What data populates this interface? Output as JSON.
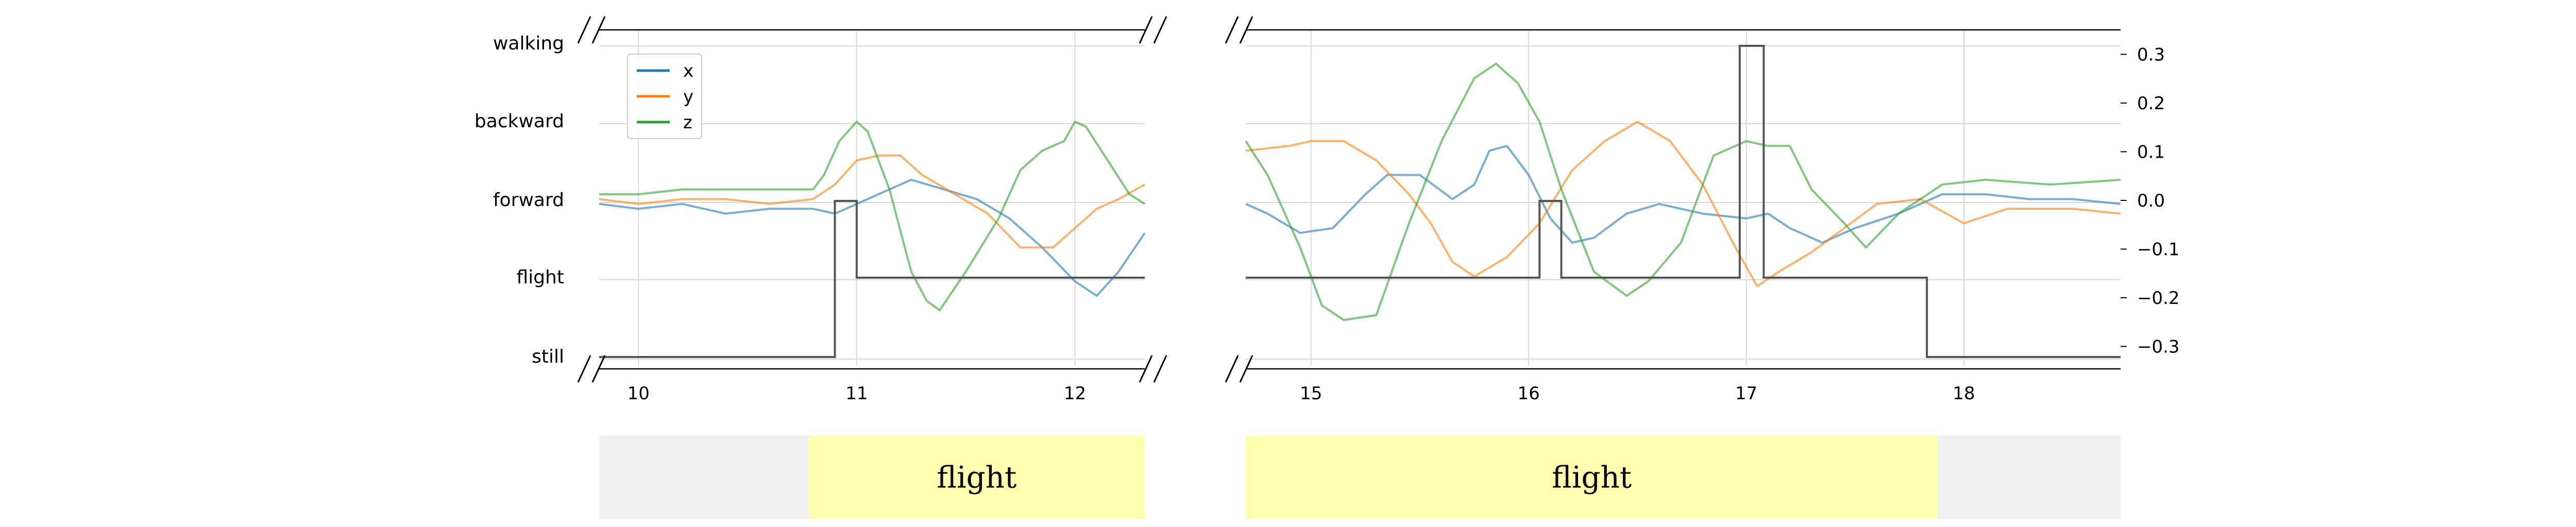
{
  "chart_data": {
    "type": "line",
    "legend": {
      "placement": "top-left",
      "entries": [
        {
          "label": "x",
          "color": "#1f77b4"
        },
        {
          "label": "y",
          "color": "#ff7f0e"
        },
        {
          "label": "z",
          "color": "#2ca02c"
        }
      ]
    },
    "left_axis": {
      "categories": [
        "walking",
        "backward",
        "forward",
        "flight",
        "still"
      ]
    },
    "right_axis": {
      "ticks": [
        "0.3",
        "0.2",
        "0.1",
        "0.0",
        "−0.1",
        "−0.2",
        "−0.3"
      ],
      "tick_values": [
        0.3,
        0.2,
        0.1,
        0.0,
        -0.1,
        -0.2,
        -0.3
      ],
      "ylim": [
        -0.35,
        0.35
      ]
    },
    "grid": true,
    "broken_axis": true,
    "panels": [
      {
        "xlim": [
          9.82,
          12.32
        ],
        "xticks": [
          10,
          11,
          12
        ],
        "xtick_labels": [
          "10",
          "11",
          "12"
        ],
        "state_series": [
          [
            9.82,
            "still"
          ],
          [
            10.9,
            "still"
          ],
          [
            10.9,
            "forward"
          ],
          [
            11.0,
            "forward"
          ],
          [
            11.0,
            "flight"
          ],
          [
            12.32,
            "flight"
          ]
        ],
        "series": [
          {
            "name": "x",
            "x": [
              9.82,
              10.0,
              10.2,
              10.4,
              10.6,
              10.8,
              10.9,
              11.0,
              11.1,
              11.25,
              11.4,
              11.55,
              11.7,
              11.85,
              12.0,
              12.1,
              12.2,
              12.32
            ],
            "values": [
              -0.01,
              -0.02,
              -0.01,
              -0.03,
              -0.02,
              -0.02,
              -0.03,
              -0.01,
              0.01,
              0.04,
              0.02,
              0.0,
              -0.04,
              -0.1,
              -0.17,
              -0.2,
              -0.15,
              -0.07
            ]
          },
          {
            "name": "y",
            "x": [
              9.82,
              10.0,
              10.2,
              10.4,
              10.6,
              10.8,
              10.9,
              11.0,
              11.1,
              11.2,
              11.3,
              11.45,
              11.6,
              11.75,
              11.9,
              12.0,
              12.1,
              12.2,
              12.32
            ],
            "values": [
              0.0,
              -0.01,
              0.0,
              0.0,
              -0.01,
              0.0,
              0.03,
              0.08,
              0.09,
              0.09,
              0.05,
              0.01,
              -0.03,
              -0.1,
              -0.1,
              -0.06,
              -0.02,
              0.0,
              0.03
            ]
          },
          {
            "name": "z",
            "x": [
              9.82,
              10.0,
              10.2,
              10.4,
              10.6,
              10.8,
              10.85,
              10.92,
              11.0,
              11.05,
              11.15,
              11.25,
              11.32,
              11.38,
              11.5,
              11.65,
              11.75,
              11.85,
              11.95,
              12.0,
              12.05,
              12.15,
              12.25,
              12.32
            ],
            "values": [
              0.01,
              0.01,
              0.02,
              0.02,
              0.02,
              0.02,
              0.05,
              0.12,
              0.16,
              0.14,
              0.02,
              -0.15,
              -0.21,
              -0.23,
              -0.15,
              -0.04,
              0.06,
              0.1,
              0.12,
              0.16,
              0.15,
              0.08,
              0.01,
              -0.01
            ]
          }
        ]
      },
      {
        "xlim": [
          14.7,
          18.72
        ],
        "xticks": [
          15,
          16,
          17,
          18
        ],
        "xtick_labels": [
          "15",
          "16",
          "17",
          "18"
        ],
        "state_series": [
          [
            14.7,
            "flight"
          ],
          [
            16.05,
            "flight"
          ],
          [
            16.05,
            "forward"
          ],
          [
            16.15,
            "forward"
          ],
          [
            16.15,
            "flight"
          ],
          [
            16.97,
            "flight"
          ],
          [
            16.97,
            "walking"
          ],
          [
            17.08,
            "walking"
          ],
          [
            17.08,
            "flight"
          ],
          [
            17.83,
            "flight"
          ],
          [
            17.83,
            "still"
          ],
          [
            18.72,
            "still"
          ]
        ],
        "series": [
          {
            "name": "x",
            "x": [
              14.7,
              14.8,
              14.95,
              15.1,
              15.25,
              15.35,
              15.5,
              15.65,
              15.75,
              15.82,
              15.9,
              16.0,
              16.1,
              16.2,
              16.3,
              16.45,
              16.6,
              16.8,
              17.0,
              17.1,
              17.2,
              17.35,
              17.5,
              17.7,
              17.9,
              18.1,
              18.3,
              18.5,
              18.72
            ],
            "values": [
              -0.01,
              -0.03,
              -0.07,
              -0.06,
              0.01,
              0.05,
              0.05,
              0.0,
              0.03,
              0.1,
              0.11,
              0.05,
              -0.04,
              -0.09,
              -0.08,
              -0.03,
              -0.01,
              -0.03,
              -0.04,
              -0.03,
              -0.06,
              -0.09,
              -0.06,
              -0.03,
              0.01,
              0.01,
              0.0,
              0.0,
              -0.01
            ]
          },
          {
            "name": "y",
            "x": [
              14.7,
              14.9,
              15.0,
              15.15,
              15.3,
              15.45,
              15.55,
              15.65,
              15.75,
              15.9,
              16.05,
              16.2,
              16.35,
              16.5,
              16.65,
              16.8,
              16.95,
              17.05,
              17.15,
              17.3,
              17.45,
              17.6,
              17.8,
              18.0,
              18.2,
              18.5,
              18.72
            ],
            "values": [
              0.1,
              0.11,
              0.12,
              0.12,
              0.08,
              0.01,
              -0.05,
              -0.13,
              -0.16,
              -0.12,
              -0.05,
              0.06,
              0.12,
              0.16,
              0.12,
              0.03,
              -0.1,
              -0.18,
              -0.15,
              -0.11,
              -0.06,
              -0.01,
              0.0,
              -0.05,
              -0.02,
              -0.02,
              -0.03
            ]
          },
          {
            "name": "z",
            "x": [
              14.7,
              14.8,
              14.95,
              15.05,
              15.15,
              15.3,
              15.45,
              15.6,
              15.75,
              15.85,
              15.95,
              16.05,
              16.15,
              16.3,
              16.45,
              16.55,
              16.7,
              16.85,
              17.0,
              17.1,
              17.2,
              17.3,
              17.45,
              17.55,
              17.7,
              17.9,
              18.1,
              18.4,
              18.72
            ],
            "values": [
              0.12,
              0.05,
              -0.1,
              -0.22,
              -0.25,
              -0.24,
              -0.05,
              0.12,
              0.25,
              0.28,
              0.24,
              0.16,
              0.02,
              -0.15,
              -0.2,
              -0.17,
              -0.09,
              0.09,
              0.12,
              0.11,
              0.11,
              0.02,
              -0.05,
              -0.1,
              -0.03,
              0.03,
              0.04,
              0.03,
              0.04
            ]
          }
        ]
      }
    ],
    "bands": [
      {
        "panel": 0,
        "x_start": 10.78,
        "x_end": 12.32,
        "label": "flight",
        "color": "#ffffb0"
      },
      {
        "panel": 1,
        "x_start": 14.7,
        "x_end": 17.88,
        "label": "flight",
        "color": "#ffffb0"
      }
    ],
    "band_background": "#f0f0f0",
    "colors": {
      "state_line": "#555555",
      "grid": "#d8d8d8",
      "axis": "#000000"
    }
  }
}
